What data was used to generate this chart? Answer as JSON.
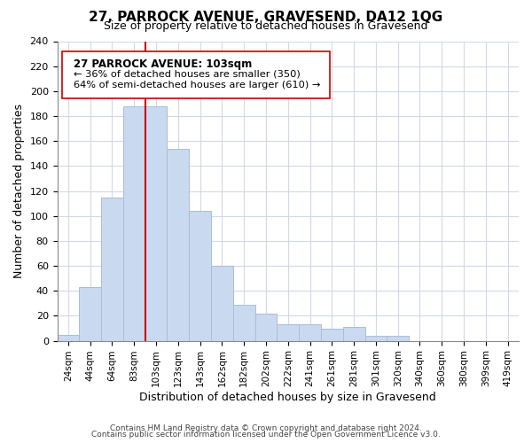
{
  "title": "27, PARROCK AVENUE, GRAVESEND, DA12 1QG",
  "subtitle": "Size of property relative to detached houses in Gravesend",
  "xlabel": "Distribution of detached houses by size in Gravesend",
  "ylabel": "Number of detached properties",
  "bar_labels": [
    "24sqm",
    "44sqm",
    "64sqm",
    "83sqm",
    "103sqm",
    "123sqm",
    "143sqm",
    "162sqm",
    "182sqm",
    "202sqm",
    "222sqm",
    "241sqm",
    "261sqm",
    "281sqm",
    "301sqm",
    "320sqm",
    "340sqm",
    "360sqm",
    "380sqm",
    "399sqm",
    "419sqm"
  ],
  "bar_heights": [
    5,
    43,
    115,
    188,
    188,
    154,
    104,
    60,
    29,
    22,
    13,
    13,
    10,
    11,
    4,
    4,
    0,
    0,
    0,
    0,
    0
  ],
  "bar_color": "#c9d9f0",
  "bar_edge_color": "#aabcd8",
  "vline_x_index": 4,
  "vline_color": "#cc0000",
  "annotation_title": "27 PARROCK AVENUE: 103sqm",
  "annotation_line1": "← 36% of detached houses are smaller (350)",
  "annotation_line2": "64% of semi-detached houses are larger (610) →",
  "annotation_box_color": "#ffffff",
  "annotation_box_edge": "#cc0000",
  "ylim": [
    0,
    240
  ],
  "yticks": [
    0,
    20,
    40,
    60,
    80,
    100,
    120,
    140,
    160,
    180,
    200,
    220,
    240
  ],
  "footer1": "Contains HM Land Registry data © Crown copyright and database right 2024.",
  "footer2": "Contains public sector information licensed under the Open Government Licence v3.0.",
  "bg_color": "#ffffff",
  "grid_color": "#d0d8e8"
}
